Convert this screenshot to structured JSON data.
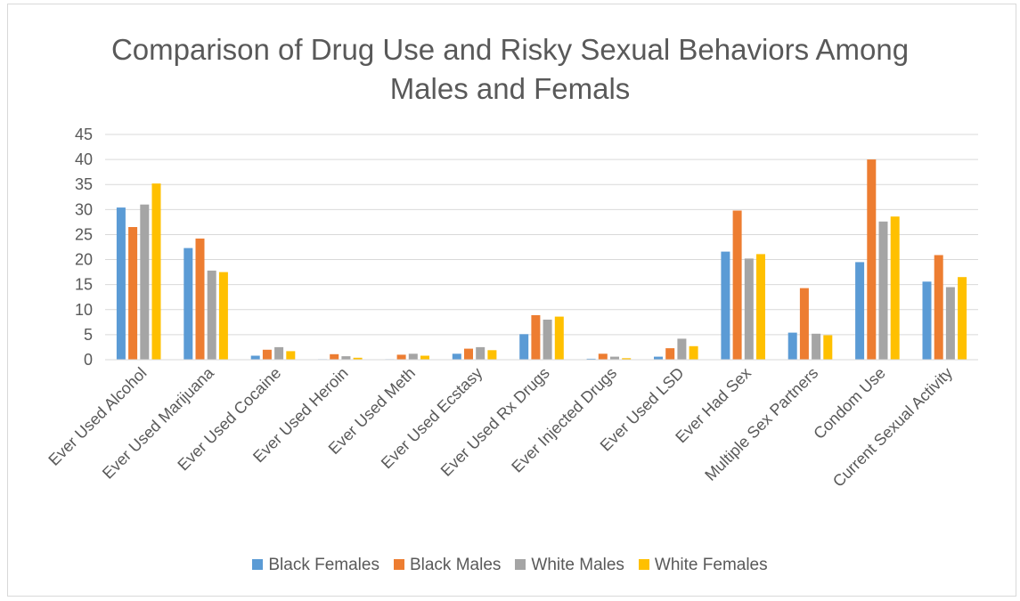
{
  "chart_data": {
    "type": "bar",
    "title": "Comparison of Drug Use and Risky Sexual Behaviors Among Males and Femals",
    "title_lines": [
      "Comparison of Drug Use and Risky Sexual Behaviors Among",
      "Males and Femals"
    ],
    "xlabel": "",
    "ylabel": "",
    "ylim": [
      0,
      45
    ],
    "yticks": [
      0,
      5,
      10,
      15,
      20,
      25,
      30,
      35,
      40,
      45
    ],
    "grid": true,
    "legend_position": "bottom",
    "categories": [
      "Ever Used Alcohol",
      "Ever Used Marijuana",
      "Ever Used Cocaine",
      "Ever Used Heroin",
      "Ever Used Meth",
      "Ever Used Ecstasy",
      "Ever Used Rx Drugs",
      "Ever Injected Drugs",
      "Ever Used LSD",
      "Ever Had Sex",
      "Multiple Sex Partners",
      "Condom Use",
      "Current Sexual Activity"
    ],
    "series": [
      {
        "name": "Black Females",
        "color": "#5b9bd5",
        "values": [
          30.4,
          22.3,
          0.8,
          0.1,
          0.1,
          1.2,
          5.1,
          0.2,
          0.6,
          21.6,
          5.4,
          19.5,
          15.6
        ]
      },
      {
        "name": "Black Males",
        "color": "#ed7d31",
        "values": [
          26.5,
          24.2,
          2.0,
          1.1,
          1.0,
          2.2,
          8.9,
          1.2,
          2.3,
          29.8,
          14.3,
          40.0,
          20.9
        ]
      },
      {
        "name": "White Males",
        "color": "#a5a5a5",
        "values": [
          31.0,
          17.8,
          2.5,
          0.7,
          1.2,
          2.5,
          8.0,
          0.6,
          4.2,
          20.2,
          5.2,
          27.6,
          14.5
        ]
      },
      {
        "name": "White Females",
        "color": "#ffc000",
        "values": [
          35.2,
          17.5,
          1.7,
          0.4,
          0.8,
          1.9,
          8.6,
          0.3,
          2.7,
          21.1,
          4.9,
          28.6,
          16.5
        ]
      }
    ]
  }
}
